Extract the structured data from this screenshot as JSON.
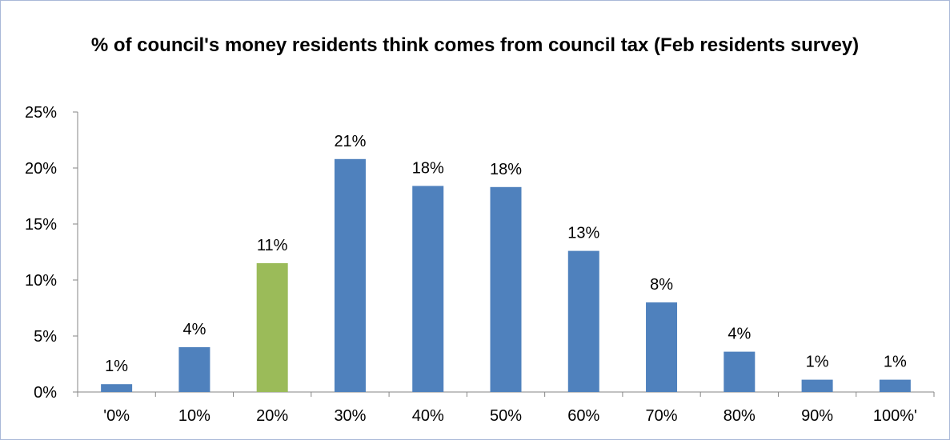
{
  "chart_data": {
    "type": "bar",
    "title": "% of council's money residents think comes from council tax (Feb residents survey)",
    "xlabel": "",
    "ylabel": "",
    "categories": [
      "'0%",
      "10%",
      "20%",
      "30%",
      "40%",
      "50%",
      "60%",
      "70%",
      "80%",
      "90%",
      "100%'"
    ],
    "values": [
      0.7,
      4.0,
      11.5,
      20.8,
      18.4,
      18.3,
      12.6,
      8.0,
      3.6,
      1.1,
      1.1
    ],
    "data_labels": [
      "1%",
      "4%",
      "11%",
      "21%",
      "18%",
      "18%",
      "13%",
      "8%",
      "4%",
      "1%",
      "1%"
    ],
    "ylim": [
      0,
      25
    ],
    "yticks": [
      0,
      5,
      10,
      15,
      20,
      25
    ],
    "ytick_labels": [
      "0%",
      "5%",
      "10%",
      "15%",
      "20%",
      "25%"
    ],
    "grid": false,
    "legend": "none",
    "colors": {
      "default": "#4f81bd",
      "highlight": "#9bbb59",
      "highlight_index": 2
    }
  }
}
